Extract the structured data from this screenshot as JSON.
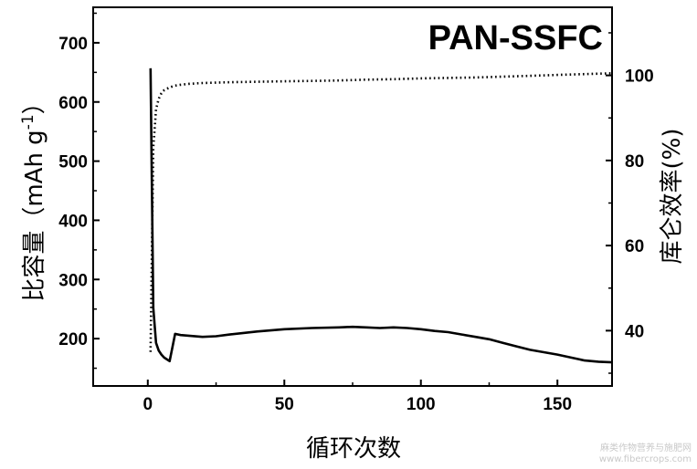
{
  "chart_data": {
    "type": "line",
    "title": "PAN-SSFC",
    "xlabel": "循环次数",
    "ylabel_left_main": "比容量（mAh g",
    "ylabel_left_sup": "-1",
    "ylabel_left_end": "）",
    "ylabel_right": "库仑效率(%)",
    "xlim": [
      -20,
      170
    ],
    "ylim_left": [
      120,
      760
    ],
    "ylim_right": [
      27,
      116
    ],
    "x_ticks": [
      0,
      50,
      100,
      150
    ],
    "y_left_ticks": [
      200,
      300,
      400,
      500,
      600,
      700
    ],
    "y_right_ticks": [
      40,
      60,
      80,
      100
    ],
    "grid": false,
    "series": [
      {
        "axis": "left",
        "style": "solid",
        "x": [
          1,
          2,
          3,
          4,
          5,
          6,
          8,
          10,
          12,
          15,
          20,
          25,
          30,
          40,
          50,
          60,
          70,
          75,
          80,
          85,
          90,
          95,
          100,
          105,
          110,
          115,
          120,
          125,
          130,
          135,
          140,
          145,
          150,
          155,
          160,
          165,
          170
        ],
        "values": [
          657,
          252,
          193,
          180,
          173,
          168,
          162,
          208,
          206,
          205,
          203,
          204,
          207,
          212,
          216,
          218,
          219,
          220,
          219,
          218,
          219,
          218,
          216,
          213,
          211,
          207,
          203,
          199,
          193,
          187,
          181,
          177,
          173,
          168,
          163,
          161,
          160
        ]
      },
      {
        "axis": "right",
        "style": "dotted",
        "x": [
          1,
          2,
          3,
          4,
          5,
          6,
          8,
          10,
          12,
          15,
          20,
          30,
          40,
          50,
          60,
          70,
          80,
          90,
          100,
          110,
          120,
          130,
          140,
          150,
          160,
          170
        ],
        "values": [
          35,
          83,
          92,
          94.5,
          95.8,
          96.5,
          97.2,
          97.6,
          97.8,
          98.0,
          98.2,
          98.4,
          98.5,
          98.6,
          98.7,
          98.8,
          99.0,
          99.1,
          99.3,
          99.4,
          99.5,
          99.7,
          99.9,
          100.1,
          100.3,
          100.5
        ]
      }
    ]
  },
  "watermark": {
    "line1": "麻类作物营养与施肥网",
    "line2": "www.fibercrops.com"
  }
}
